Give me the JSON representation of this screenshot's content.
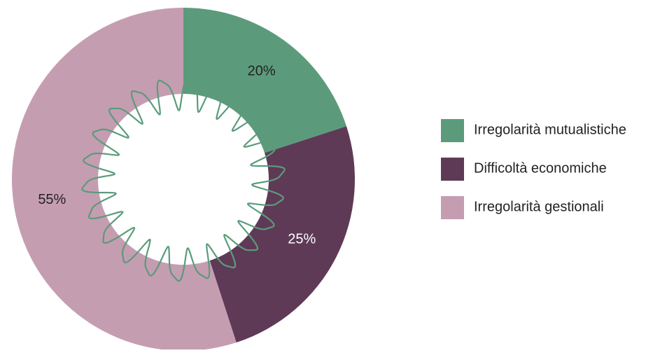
{
  "chart_data": {
    "type": "donut",
    "categories": [
      "Irregolarità mutualistiche",
      "Difficoltà economiche",
      "Irregolarità gestionali"
    ],
    "values": [
      20,
      25,
      55
    ],
    "value_labels": [
      "20%",
      "25%",
      "55%"
    ],
    "colors": [
      "#5b9b7b",
      "#5e3a56",
      "#c59db1"
    ],
    "legend": "right"
  }
}
